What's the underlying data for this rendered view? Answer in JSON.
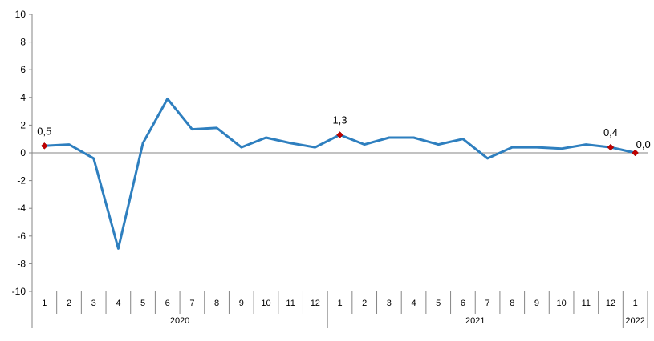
{
  "chart_data": {
    "type": "line",
    "title": "",
    "xlabel": "",
    "ylabel": "",
    "ylim": [
      -10,
      10
    ],
    "yticks": [
      10,
      8,
      6,
      4,
      2,
      0,
      -2,
      -4,
      -6,
      -8,
      -10
    ],
    "categories": [
      "1",
      "2",
      "3",
      "4",
      "5",
      "6",
      "7",
      "8",
      "9",
      "10",
      "11",
      "12",
      "1",
      "2",
      "3",
      "4",
      "5",
      "6",
      "7",
      "8",
      "9",
      "10",
      "11",
      "12",
      "1"
    ],
    "groups": [
      {
        "label": "2020",
        "count": 12
      },
      {
        "label": "2021",
        "count": 12
      },
      {
        "label": "2022",
        "count": 1
      }
    ],
    "series": [
      {
        "values": [
          0.5,
          0.6,
          -0.4,
          -6.9,
          0.7,
          3.9,
          1.7,
          1.8,
          0.4,
          1.1,
          0.7,
          0.4,
          1.3,
          0.6,
          1.1,
          1.1,
          0.6,
          1.0,
          -0.4,
          0.4,
          0.4,
          0.3,
          0.6,
          0.4,
          0.0
        ],
        "color": "#2E7FBF"
      }
    ],
    "annotations": [
      {
        "index": 0,
        "text": "0,5"
      },
      {
        "index": 12,
        "text": "1,3"
      },
      {
        "index": 23,
        "text": "0,4"
      },
      {
        "index": 24,
        "text": "0,0"
      }
    ],
    "marker_color": "#C00000",
    "grid": false,
    "legend": "none"
  }
}
